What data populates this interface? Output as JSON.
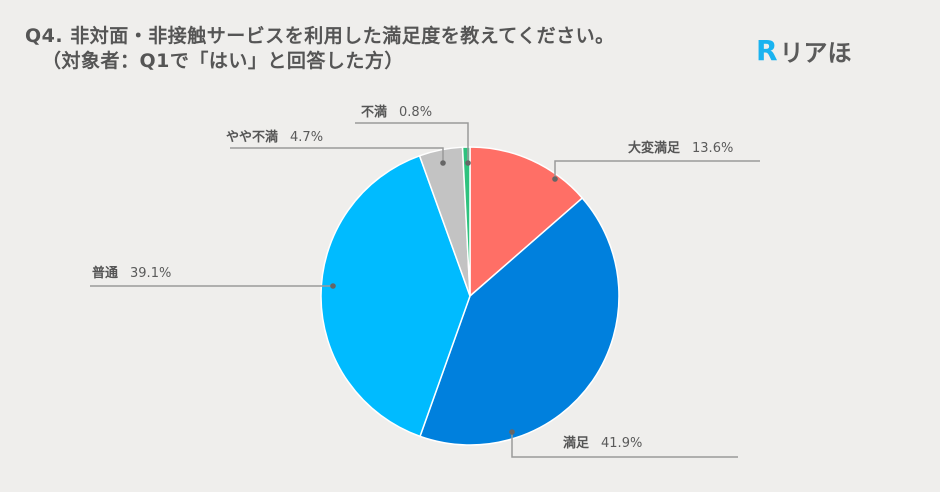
{
  "title": {
    "line1": "Q4. 非対面・非接触サービスを利用した満足度を教えてください。",
    "line2": "（対象者：Q1で「はい」と回答した方）"
  },
  "logo": {
    "mark": "R",
    "text": "リアほ"
  },
  "labels": {
    "very_satisfied": {
      "name": "大変満足",
      "pct": "13.6%"
    },
    "satisfied": {
      "name": "満足",
      "pct": "41.9%"
    },
    "neutral": {
      "name": "普通",
      "pct": "39.1%"
    },
    "somewhat_dissatisfied": {
      "name": "やや不満",
      "pct": "4.7%"
    },
    "dissatisfied": {
      "name": "不満",
      "pct": "0.8%"
    }
  },
  "chart_data": {
    "type": "pie",
    "title": "Q4. 非対面・非接触サービスを利用した満足度を教えてください。（対象者：Q1で「はい」と回答した方）",
    "categories": [
      "大変満足",
      "満足",
      "普通",
      "やや不満",
      "不満"
    ],
    "values": [
      13.6,
      41.9,
      39.1,
      4.7,
      0.8
    ],
    "colors": [
      "#ff6f66",
      "#0080dd",
      "#00bbff",
      "#c3c3c3",
      "#2ec27e"
    ],
    "start_angle": "12 o'clock, clockwise",
    "legend": "none (callout labels)",
    "unit": "%"
  }
}
